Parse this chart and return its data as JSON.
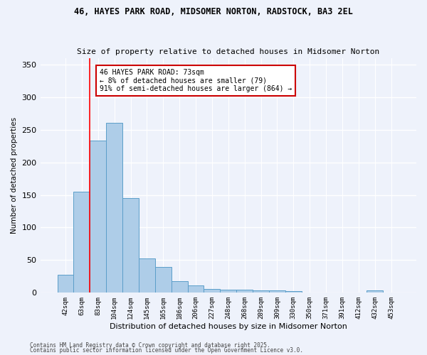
{
  "title1": "46, HAYES PARK ROAD, MIDSOMER NORTON, RADSTOCK, BA3 2EL",
  "title2": "Size of property relative to detached houses in Midsomer Norton",
  "xlabel": "Distribution of detached houses by size in Midsomer Norton",
  "ylabel": "Number of detached properties",
  "categories": [
    "42sqm",
    "63sqm",
    "83sqm",
    "104sqm",
    "124sqm",
    "145sqm",
    "165sqm",
    "186sqm",
    "206sqm",
    "227sqm",
    "248sqm",
    "268sqm",
    "289sqm",
    "309sqm",
    "330sqm",
    "350sqm",
    "371sqm",
    "391sqm",
    "412sqm",
    "432sqm",
    "453sqm"
  ],
  "values": [
    28,
    155,
    233,
    260,
    145,
    53,
    39,
    18,
    11,
    6,
    5,
    5,
    4,
    4,
    2,
    0,
    0,
    0,
    0,
    4,
    0
  ],
  "bar_color": "#aecde8",
  "bar_edge_color": "#5b9ec9",
  "red_line_index": 1.5,
  "annotation_text": "46 HAYES PARK ROAD: 73sqm\n← 8% of detached houses are smaller (79)\n91% of semi-detached houses are larger (864) →",
  "annotation_box_color": "#ffffff",
  "annotation_box_edge": "#cc0000",
  "bg_color": "#eef2fb",
  "grid_color": "#ffffff",
  "footer1": "Contains HM Land Registry data © Crown copyright and database right 2025.",
  "footer2": "Contains public sector information licensed under the Open Government Licence v3.0.",
  "ylim": [
    0,
    360
  ],
  "yticks": [
    0,
    50,
    100,
    150,
    200,
    250,
    300,
    350
  ]
}
